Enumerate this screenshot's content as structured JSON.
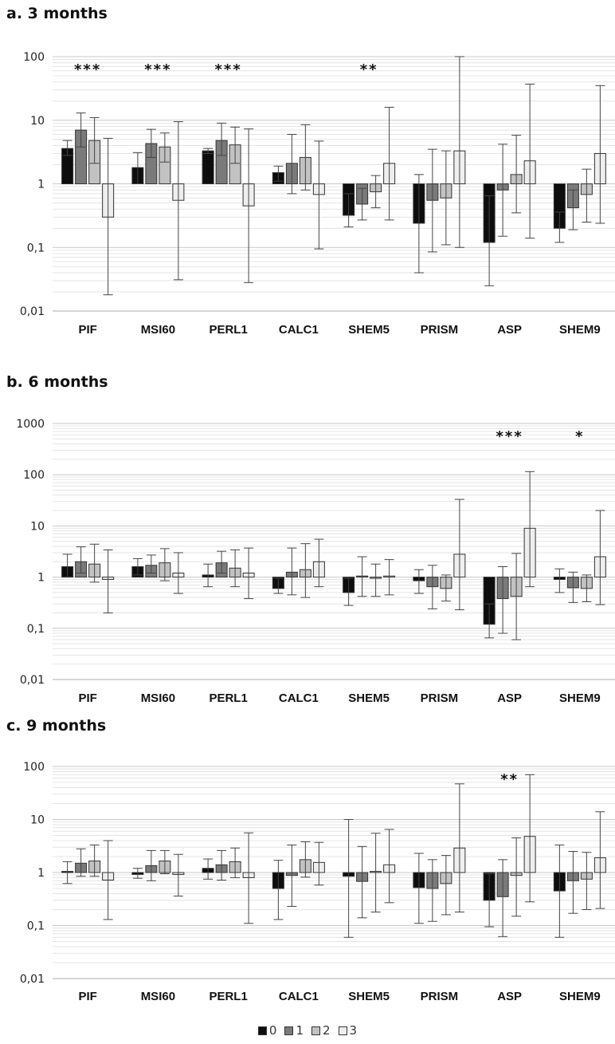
{
  "colors": {
    "0": "#0d0d0d",
    "1": "#7a7a7a",
    "2": "#c2c2c2",
    "3": "#eeeeee",
    "grid": "#dedede",
    "axis": "#bfbfbf"
  },
  "legend": [
    {
      "label": "0",
      "color": "#0d0d0d"
    },
    {
      "label": "1",
      "color": "#7a7a7a"
    },
    {
      "label": "2",
      "color": "#c2c2c2"
    },
    {
      "label": "3",
      "color": "#eeeeee"
    }
  ],
  "chart_data": [
    {
      "type": "bar",
      "title": "a. 3 months",
      "yscale": "log",
      "ylim": [
        0.01,
        100
      ],
      "ticks": [
        0.01,
        0.1,
        1,
        10,
        100
      ],
      "tick_labels": [
        "0,01",
        "0,1",
        "1",
        "10",
        "100"
      ],
      "grid": true,
      "categories": [
        "PIF",
        "MSI60",
        "PERL1",
        "CALC1",
        "SHEM5",
        "PRISM",
        "ASP",
        "SHEM9"
      ],
      "significance": [
        "***",
        "***",
        "***",
        "",
        "**",
        "",
        "",
        ""
      ],
      "series": [
        {
          "name": "0",
          "values": [
            3.6,
            1.8,
            3.3,
            1.5,
            0.32,
            0.24,
            0.12,
            0.2
          ],
          "err_low": [
            2.8,
            1.0,
            3.0,
            1.1,
            0.21,
            0.04,
            0.025,
            0.12
          ],
          "err_high": [
            4.8,
            3.1,
            3.6,
            1.9,
            0.7,
            1.4,
            0.65,
            0.36
          ]
        },
        {
          "name": "1",
          "values": [
            7.0,
            4.3,
            4.8,
            2.1,
            0.48,
            0.55,
            0.8,
            0.42
          ],
          "err_low": [
            3.8,
            2.6,
            2.8,
            0.7,
            0.27,
            0.085,
            0.15,
            0.19
          ],
          "err_high": [
            13,
            7.2,
            9.0,
            6.0,
            0.85,
            3.5,
            4.2,
            0.8
          ]
        },
        {
          "name": "2",
          "values": [
            4.8,
            3.8,
            4.1,
            2.6,
            0.75,
            0.6,
            1.4,
            0.68
          ],
          "err_low": [
            2.1,
            2.2,
            2.1,
            0.8,
            0.42,
            0.11,
            0.35,
            0.25
          ],
          "err_high": [
            11,
            6.3,
            7.8,
            8.5,
            1.35,
            3.3,
            5.8,
            1.7
          ]
        },
        {
          "name": "3",
          "values": [
            0.3,
            0.55,
            0.45,
            0.68,
            2.1,
            3.3,
            2.3,
            3.0
          ],
          "err_low": [
            0.018,
            0.031,
            0.028,
            0.095,
            0.27,
            0.1,
            0.14,
            0.24
          ],
          "err_high": [
            5.2,
            9.5,
            7.3,
            4.7,
            16,
            100,
            37,
            35
          ]
        }
      ]
    },
    {
      "type": "bar",
      "title": "b. 6 months",
      "yscale": "log",
      "ylim": [
        0.01,
        1000
      ],
      "ticks": [
        0.01,
        0.1,
        1,
        10,
        100,
        1000
      ],
      "tick_labels": [
        "0,01",
        "0,1",
        "1",
        "10",
        "100",
        "1000"
      ],
      "grid": true,
      "categories": [
        "PIF",
        "MSI60",
        "PERL1",
        "CALC1",
        "SHEM5",
        "PRISM",
        "ASP",
        "SHEM9"
      ],
      "significance": [
        "",
        "",
        "",
        "",
        "",
        "",
        "***",
        "*"
      ],
      "series": [
        {
          "name": "0",
          "values": [
            1.6,
            1.6,
            1.1,
            0.6,
            0.5,
            0.85,
            0.12,
            0.9
          ],
          "err_low": [
            1.0,
            1.1,
            0.65,
            0.48,
            0.28,
            0.48,
            0.065,
            0.5
          ],
          "err_high": [
            2.8,
            2.3,
            1.8,
            0.95,
            0.95,
            1.4,
            0.3,
            1.45
          ]
        },
        {
          "name": "1",
          "values": [
            2.0,
            1.7,
            1.9,
            1.25,
            1.05,
            0.65,
            0.38,
            0.62
          ],
          "err_low": [
            1.2,
            1.2,
            1.2,
            0.45,
            0.42,
            0.24,
            0.08,
            0.32
          ],
          "err_high": [
            3.9,
            2.7,
            3.2,
            3.7,
            2.5,
            1.7,
            1.6,
            1.25
          ]
        },
        {
          "name": "2",
          "values": [
            1.8,
            1.9,
            1.5,
            1.4,
            0.95,
            0.6,
            0.42,
            0.6
          ],
          "err_low": [
            0.8,
            0.85,
            0.65,
            0.4,
            0.42,
            0.34,
            0.06,
            0.33
          ],
          "err_high": [
            4.4,
            3.6,
            3.4,
            4.5,
            1.8,
            1.1,
            2.9,
            1.1
          ]
        },
        {
          "name": "3",
          "values": [
            0.9,
            1.2,
            1.2,
            2.0,
            1.05,
            2.8,
            9.0,
            2.5
          ],
          "err_low": [
            0.2,
            0.48,
            0.38,
            0.65,
            0.45,
            0.23,
            0.65,
            0.29
          ],
          "err_high": [
            3.4,
            3.0,
            3.7,
            5.5,
            2.2,
            33,
            115,
            20
          ]
        }
      ]
    },
    {
      "type": "bar",
      "title": "c. 9 months",
      "yscale": "log",
      "ylim": [
        0.01,
        100
      ],
      "ticks": [
        0.01,
        0.1,
        1,
        10,
        100
      ],
      "tick_labels": [
        "0,01",
        "0,1",
        "1",
        "10",
        "100"
      ],
      "grid": true,
      "categories": [
        "PIF",
        "MSI60",
        "PERL1",
        "CALC1",
        "SHEM5",
        "PRISM",
        "ASP",
        "SHEM9"
      ],
      "significance": [
        "",
        "",
        "",
        "",
        "",
        "",
        "**",
        ""
      ],
      "series": [
        {
          "name": "0",
          "values": [
            1.05,
            0.92,
            1.2,
            0.5,
            0.85,
            0.52,
            0.3,
            0.45
          ],
          "err_low": [
            0.62,
            0.78,
            0.75,
            0.13,
            0.06,
            0.11,
            0.095,
            0.06
          ],
          "err_high": [
            1.6,
            1.2,
            1.8,
            1.7,
            10,
            2.3,
            0.95,
            3.3
          ]
        },
        {
          "name": "1",
          "values": [
            1.5,
            1.35,
            1.4,
            0.88,
            0.68,
            0.5,
            0.35,
            0.7
          ],
          "err_low": [
            0.85,
            0.7,
            0.72,
            0.23,
            0.14,
            0.12,
            0.062,
            0.17
          ],
          "err_high": [
            2.8,
            2.6,
            2.6,
            3.3,
            3.1,
            1.75,
            1.75,
            2.5
          ]
        },
        {
          "name": "2",
          "values": [
            1.65,
            1.65,
            1.6,
            1.75,
            1.05,
            0.62,
            0.88,
            0.75
          ],
          "err_low": [
            0.85,
            0.95,
            0.8,
            0.82,
            0.18,
            0.16,
            0.15,
            0.2
          ],
          "err_high": [
            3.3,
            2.6,
            2.9,
            3.8,
            5.5,
            2.1,
            4.5,
            2.4
          ]
        },
        {
          "name": "3",
          "values": [
            0.72,
            0.92,
            0.8,
            1.55,
            1.4,
            2.9,
            4.8,
            1.9
          ],
          "err_low": [
            0.13,
            0.36,
            0.11,
            0.58,
            0.27,
            0.18,
            0.28,
            0.21
          ],
          "err_high": [
            4.0,
            2.2,
            5.6,
            3.7,
            6.5,
            47,
            70,
            14
          ]
        }
      ]
    }
  ]
}
